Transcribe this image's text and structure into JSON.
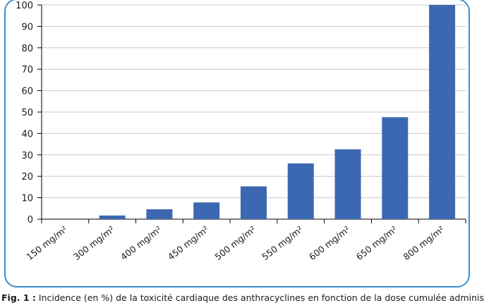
{
  "chart_data": {
    "type": "bar",
    "categories": [
      "150 mg/m²",
      "300 mg/m²",
      "400 mg/m²",
      "450 mg/m²",
      "500 mg/m²",
      "550 mg/m²",
      "600 mg/m²",
      "650 mg/m²",
      "800 mg/m²"
    ],
    "values": [
      0,
      1.7,
      4.6,
      7.8,
      15.3,
      26,
      32.6,
      47.6,
      100
    ],
    "ylim": [
      0,
      100
    ],
    "yticks": [
      0,
      10,
      20,
      30,
      40,
      50,
      60,
      70,
      80,
      90,
      100
    ],
    "grid": true,
    "bar_color": "#3c68b2",
    "grid_color": "#c8c8c8",
    "xlabel": "",
    "ylabel": ""
  },
  "caption": {
    "label": "Fig. 1 :",
    "text": " Incidence (en %) de la toxicité cardiaque des anthracyclines en fonction de la dose cumulée adminis-"
  },
  "frame_color": "#3a8fd0"
}
